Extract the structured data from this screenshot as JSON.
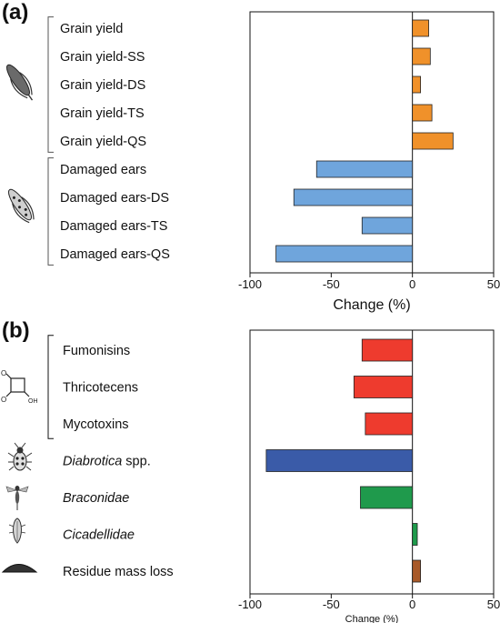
{
  "panels": [
    {
      "label": "(a)"
    },
    {
      "label": "(b)"
    }
  ],
  "colors": {
    "yield": "#f0912a",
    "ears": "#6fa5dc",
    "toxins": "#ee3b2e",
    "diabrotica": "#3a5ba8",
    "braconidae": "#1f9a4c",
    "cicadellidae": "#1f9a4c",
    "residue": "#a85a2a"
  },
  "icons": {
    "a": [
      "maize-ear-icon",
      "damaged-ear-icon"
    ],
    "b": [
      "cyclobutene-molecule-icon",
      "beetle-icon",
      "wasp-icon",
      "leafhopper-icon",
      "residue-pile-icon"
    ]
  },
  "chart_data": [
    {
      "type": "bar",
      "orientation": "horizontal",
      "panel": "(a)",
      "categories": [
        "Grain yield",
        "Grain yield-SS",
        "Grain yield-DS",
        "Grain yield-TS",
        "Grain yield-QS",
        "Damaged ears",
        "Damaged ears-DS",
        "Damaged ears-TS",
        "Damaged ears-QS"
      ],
      "values": [
        10,
        11,
        5,
        12,
        25,
        -59,
        -73,
        -31,
        -84
      ],
      "colors": [
        "#f0912a",
        "#f0912a",
        "#f0912a",
        "#f0912a",
        "#f0912a",
        "#6fa5dc",
        "#6fa5dc",
        "#6fa5dc",
        "#6fa5dc"
      ],
      "groups": [
        {
          "start": 0,
          "end": 4
        },
        {
          "start": 5,
          "end": 8
        }
      ],
      "xlabel": "Change (%)",
      "xlim": [
        -100,
        50
      ],
      "xticks": [
        -100,
        -50,
        0,
        50
      ]
    },
    {
      "type": "bar",
      "orientation": "horizontal",
      "panel": "(b)",
      "categories": [
        "Fumonisins",
        "Thricotecens",
        "Mycotoxins",
        "Diabrotica spp.",
        "Braconidae",
        "Cicadellidae",
        "Residue mass loss"
      ],
      "category_parts": [
        [
          {
            "text": "Fumonisins",
            "italic": false
          }
        ],
        [
          {
            "text": "Thricotecens",
            "italic": false
          }
        ],
        [
          {
            "text": "Mycotoxins",
            "italic": false
          }
        ],
        [
          {
            "text": "Diabrotica",
            "italic": true
          },
          {
            "text": " spp.",
            "italic": false
          }
        ],
        [
          {
            "text": "Braconidae",
            "italic": true
          }
        ],
        [
          {
            "text": "Cicadellidae",
            "italic": true
          }
        ],
        [
          {
            "text": "Residue mass loss",
            "italic": false
          }
        ]
      ],
      "values": [
        -31,
        -36,
        -29,
        -90,
        -32,
        3,
        5
      ],
      "colors": [
        "#ee3b2e",
        "#ee3b2e",
        "#ee3b2e",
        "#3a5ba8",
        "#1f9a4c",
        "#1f9a4c",
        "#a85a2a"
      ],
      "groups": [
        {
          "start": 0,
          "end": 2
        }
      ],
      "xlabel": "Change (%)",
      "xlim": [
        -100,
        50
      ],
      "xticks": [
        -100,
        -50,
        0,
        50
      ]
    }
  ]
}
